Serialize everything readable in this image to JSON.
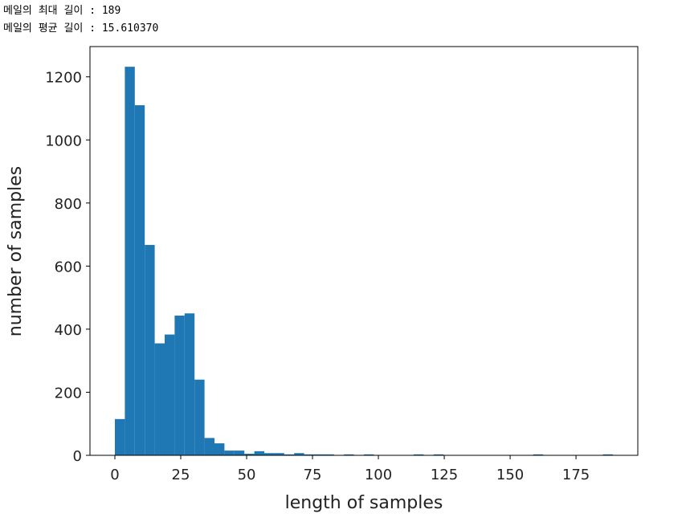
{
  "output_lines": [
    "메일의 최대 길이 : 189",
    "메일의 평균 길이 : 15.610370"
  ],
  "chart_data": {
    "type": "histogram",
    "xlabel": "length of samples",
    "ylabel": "number of samples",
    "color": "#1f77b4",
    "bins": [
      0,
      3.78,
      7.56,
      11.34,
      15.12,
      18.9,
      22.68,
      26.46,
      30.24,
      34.02,
      37.8,
      41.58,
      45.36,
      49.14,
      52.92,
      56.7,
      60.48,
      64.26,
      68.04,
      71.82,
      75.6,
      79.38,
      83.16,
      86.94,
      90.72,
      94.5,
      98.28,
      102.06,
      105.84,
      109.62,
      113.4,
      117.18,
      120.96,
      124.74,
      128.52,
      132.3,
      136.08,
      139.86,
      143.64,
      147.42,
      151.2,
      154.98,
      158.76,
      162.54,
      166.32,
      170.1,
      173.88,
      177.66,
      181.44,
      185.22,
      189
    ],
    "values": [
      115,
      1232,
      1110,
      667,
      355,
      383,
      443,
      450,
      240,
      55,
      38,
      15,
      15,
      5,
      13,
      7,
      7,
      3,
      7,
      3,
      3,
      3,
      1,
      3,
      1,
      3,
      1,
      0,
      0,
      0,
      3,
      0,
      3,
      0,
      0,
      0,
      0,
      0,
      0,
      0,
      0,
      0,
      3,
      0,
      0,
      0,
      0,
      0,
      0,
      3
    ],
    "xlim": [
      -9.45,
      198.45
    ],
    "xticks": [
      0,
      25,
      50,
      75,
      100,
      125,
      150,
      175
    ],
    "ylim": [
      0,
      1296
    ],
    "yticks": [
      0,
      200,
      400,
      600,
      800,
      1000,
      1200
    ]
  }
}
